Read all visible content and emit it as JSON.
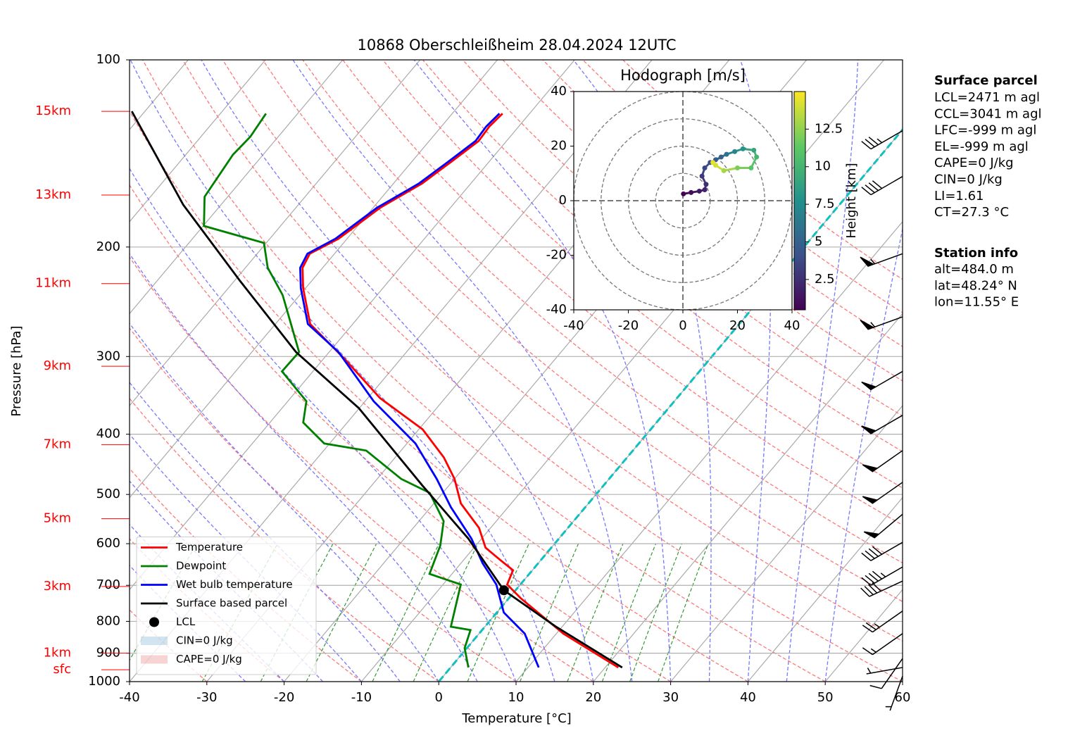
{
  "chart_data": [
    {
      "type": "skewt",
      "title": "10868 Oberschleißheim 28.04.2024 12UTC",
      "x_label": "Temperature [°C]",
      "y_label": "Pressure [hPa]",
      "xlim": [
        -40,
        60
      ],
      "xticks": [
        -40,
        -30,
        -20,
        -10,
        0,
        10,
        20,
        30,
        40,
        50,
        60
      ],
      "ylim": [
        1000,
        100
      ],
      "yticks": [
        100,
        200,
        300,
        400,
        500,
        600,
        700,
        800,
        900,
        1000
      ],
      "log_y": true,
      "grid": true,
      "legend": "lower left",
      "height_ticks": [
        {
          "value": 121,
          "label": "15km"
        },
        {
          "value": 165,
          "label": "13km"
        },
        {
          "value": 229,
          "label": "11km"
        },
        {
          "value": 311,
          "label": "9km"
        },
        {
          "value": 416,
          "label": "7km"
        },
        {
          "value": 547,
          "label": "5km"
        },
        {
          "value": 703,
          "label": "3km"
        },
        {
          "value": 900,
          "label": "1km"
        },
        {
          "value": 957,
          "label": "sfc"
        }
      ],
      "series": [
        {
          "name": "Temperature",
          "color": "#ff0000",
          "pressure": [
            949,
            837,
            735,
            698,
            662,
            637,
            609,
            566,
            517,
            472,
            436,
            393,
            350,
            303,
            266,
            233,
            216,
            205,
            194,
            173,
            158,
            146,
            135,
            128,
            122
          ],
          "values": [
            21.7,
            10.9,
            1.6,
            -1.7,
            -2.5,
            -5.3,
            -8.5,
            -11.5,
            -16.5,
            -20.0,
            -23.7,
            -29.5,
            -38.4,
            -47.2,
            -55.5,
            -60.3,
            -62.6,
            -63.2,
            -61.1,
            -59.1,
            -56.3,
            -54.9,
            -53.6,
            -53.8,
            -53.5
          ]
        },
        {
          "name": "Dewpoint",
          "color": "#008000",
          "pressure": [
            949,
            883,
            826,
            816,
            698,
            671,
            604,
            552,
            497,
            472,
            425,
            414,
            383,
            354,
            317,
            295,
            239,
            216,
            197,
            185,
            166,
            142,
            133,
            122
          ],
          "values": [
            2.3,
            -0.3,
            -1.5,
            -4.4,
            -7.7,
            -12.9,
            -14.6,
            -16.8,
            -21.7,
            -26.9,
            -34.5,
            -40.7,
            -45.7,
            -47.6,
            -54,
            -53.9,
            -62.2,
            -67.1,
            -70.3,
            -79.9,
            -83,
            -83.9,
            -83.6,
            -84.1
          ]
        },
        {
          "name": "Wet bulb temperature",
          "color": "#0000ff",
          "pressure": [
            949,
            837,
            774,
            698,
            645,
            589,
            524,
            472,
            414,
            354,
            295,
            266,
            233,
            216,
            205,
            194,
            173,
            158,
            146,
            135,
            128,
            122
          ],
          "values": [
            11.4,
            5.9,
            0.9,
            -3.1,
            -7.2,
            -11.3,
            -17.4,
            -22.3,
            -28.9,
            -38.9,
            -48.8,
            -55.8,
            -60.6,
            -62.9,
            -63.5,
            -61.5,
            -59.5,
            -56.7,
            -55.3,
            -54.0,
            -54.2,
            -53.9
          ]
        },
        {
          "name": "Surface based parcel",
          "color": "#000000",
          "pressure": [
            949,
            816,
            713,
            589,
            484,
            363,
            295,
            227,
            171,
            121
          ],
          "values": [
            22.2,
            9.2,
            -1.5,
            -11.7,
            -23.4,
            -40.1,
            -54.3,
            -69.2,
            -84.9,
            -101.7
          ]
        }
      ],
      "lcl": {
        "name": "LCL",
        "color": "#000000",
        "pressure": 713,
        "value": -1.5
      },
      "areas": [
        {
          "name": "CIN=0 J/kg",
          "color": "#1f77b4"
        },
        {
          "name": "CAPE=0 J/kg",
          "color": "#d62728"
        }
      ],
      "wind": {
        "pressure": [
          130,
          154,
          205,
          259,
          317,
          373,
          425,
          478,
          538,
          597,
          654,
          689,
          770,
          837,
          918,
          949,
          980
        ],
        "speed": [
          35,
          40,
          55,
          55,
          50,
          50,
          50,
          50,
          50,
          40,
          45,
          40,
          25,
          15,
          10,
          5,
          5
        ],
        "direction": [
          240,
          240,
          250,
          250,
          240,
          240,
          235,
          235,
          230,
          240,
          240,
          245,
          235,
          235,
          215,
          260,
          200
        ]
      }
    },
    {
      "type": "hodograph",
      "title": "Hodograph [m/s]",
      "xlim": [
        -40,
        40
      ],
      "ylim": [
        -40,
        40
      ],
      "xticks": [
        -40,
        -20,
        0,
        20,
        40
      ],
      "yticks": [
        -40,
        -20,
        0,
        20,
        40
      ],
      "u": [
        0.2,
        3,
        6,
        8,
        8.5,
        7,
        8,
        10,
        12,
        14,
        16,
        19,
        22,
        26,
        27,
        25,
        20,
        15,
        12,
        11
      ],
      "v": [
        2.5,
        3,
        3.5,
        4,
        6,
        9,
        12,
        14,
        15,
        16,
        17,
        18,
        19,
        18.5,
        16,
        12,
        12,
        11,
        13,
        14
      ],
      "height": [
        0.5,
        1,
        1.5,
        2,
        2.5,
        3,
        3.5,
        4,
        4.5,
        5,
        6,
        7,
        8,
        9,
        10,
        11,
        12,
        13,
        14,
        14.5
      ],
      "colorbar": {
        "label": "Height [km]",
        "lim": [
          0.48,
          15.0
        ],
        "ticks": [
          2.5,
          5,
          7.5,
          10,
          12.5
        ]
      }
    }
  ],
  "surface_parcel": {
    "title": "Surface parcel",
    "lines": [
      "LCL=2471 m agl",
      "CCL=3041 m agl",
      "LFC=-999 m agl",
      "EL=-999 m agl",
      "CAPE=0 J/kg",
      "CIN=0 J/kg",
      "LI=1.61",
      "CT=27.3 °C"
    ]
  },
  "station_info": {
    "title": "Station info",
    "lines": [
      "alt=484.0 m",
      "lat=48.24° N",
      "lon=11.55° E"
    ]
  }
}
